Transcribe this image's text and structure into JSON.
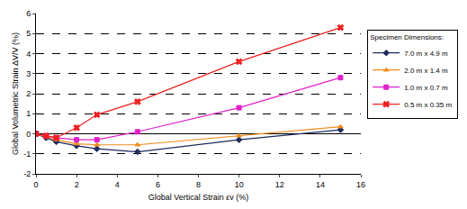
{
  "chart_data": {
    "type": "line",
    "x_label": "Global Vertical Strain εv (%)",
    "y_label": "Global Volumetric Strain ΔV/V (%)",
    "legend_title": "Specimen Dimensions:",
    "legend": "right",
    "grid": true,
    "xlim": [
      0,
      16
    ],
    "xticks": [
      0,
      2,
      4,
      6,
      8,
      10,
      12,
      14,
      16
    ],
    "ylim": [
      -2,
      6
    ],
    "yticks": [
      -2,
      -1,
      0,
      1,
      2,
      3,
      4,
      5,
      6
    ],
    "series": [
      {
        "name": "7.0 m x 4.9 m",
        "color": "#1f2a5c",
        "marker": "diamond",
        "x": [
          0,
          0.5,
          1,
          2,
          3,
          5,
          10,
          15
        ],
        "values": [
          0,
          -0.2,
          -0.4,
          -0.6,
          -0.75,
          -0.9,
          -0.3,
          0.2
        ]
      },
      {
        "name": "2.0 m x 1.4 m",
        "color": "#f08c1e",
        "marker": "triangle-up",
        "x": [
          0,
          0.5,
          1,
          2,
          3,
          5,
          10,
          15
        ],
        "values": [
          0,
          -0.15,
          -0.3,
          -0.5,
          -0.55,
          -0.55,
          -0.1,
          0.35
        ]
      },
      {
        "name": "1.0 m x 0.7 m",
        "color": "#e020c8",
        "marker": "square",
        "x": [
          0,
          0.5,
          1,
          2,
          3,
          5,
          10,
          15
        ],
        "values": [
          0,
          -0.1,
          -0.2,
          -0.3,
          -0.3,
          0.1,
          1.3,
          2.8
        ]
      },
      {
        "name": "0.5 m x 0.35 m",
        "color": "#ee2020",
        "marker": "x",
        "x": [
          0,
          0.5,
          1,
          2,
          3,
          5,
          10,
          15
        ],
        "values": [
          0,
          -0.1,
          -0.2,
          0.3,
          0.95,
          1.6,
          3.6,
          5.3
        ]
      }
    ]
  }
}
